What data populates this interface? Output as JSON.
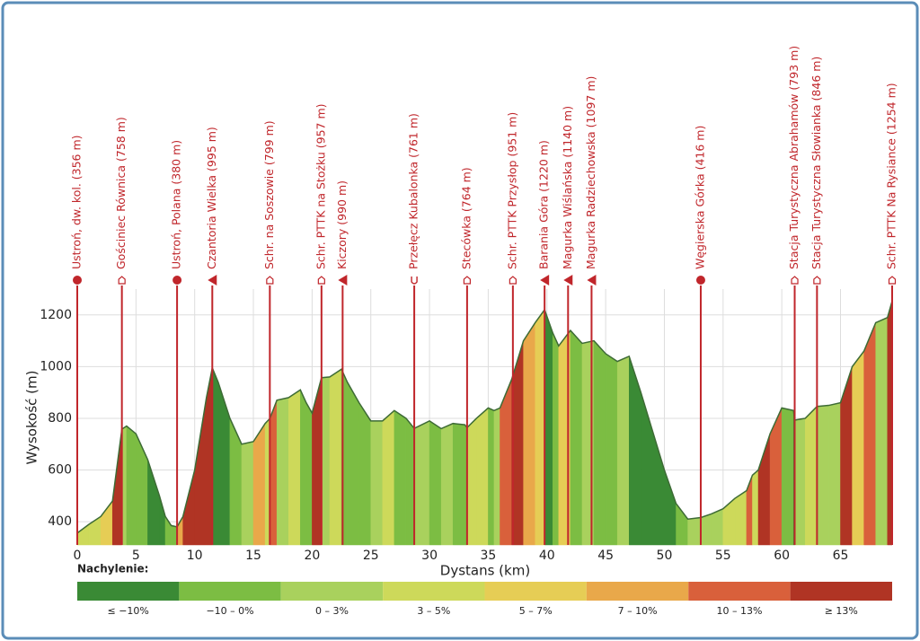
{
  "chart_data": {
    "type": "elevation-profile",
    "x_label": "Dystans (km)",
    "y_label": "Wysokość (m)",
    "xlim": [
      0,
      69.4
    ],
    "ylim": [
      310,
      1300
    ],
    "xticks": [
      0,
      5,
      10,
      15,
      20,
      25,
      30,
      35,
      40,
      45,
      50,
      55,
      60,
      65
    ],
    "yticks": [
      400,
      600,
      800,
      1000,
      1200
    ],
    "grid": true,
    "line_color": "#3d6b35",
    "x": [
      0,
      1,
      2,
      3,
      3.8,
      4.2,
      5,
      6,
      7,
      7.5,
      8,
      8.5,
      9,
      10,
      11,
      11.5,
      12,
      13,
      14,
      15,
      16,
      16.4,
      17,
      18,
      19,
      19.5,
      20,
      20.8,
      21.5,
      22.5,
      23,
      24,
      25,
      26,
      27,
      28,
      28.7,
      30,
      31,
      32,
      33,
      33.2,
      34,
      35,
      35.5,
      36,
      37,
      38,
      39,
      39.8,
      40.5,
      41,
      42,
      43,
      43.7,
      44,
      45,
      46,
      46.5,
      47,
      48,
      49,
      50,
      51,
      52,
      53.1,
      54,
      55,
      56,
      57,
      57.5,
      58,
      59,
      60,
      61,
      61.1,
      62,
      63,
      64,
      65,
      66,
      67,
      68,
      69,
      69.4
    ],
    "values": [
      356,
      390,
      420,
      480,
      758,
      770,
      740,
      640,
      500,
      420,
      385,
      380,
      420,
      600,
      880,
      995,
      940,
      800,
      700,
      710,
      780,
      799,
      870,
      880,
      910,
      860,
      820,
      957,
      960,
      990,
      940,
      860,
      790,
      790,
      830,
      800,
      761,
      790,
      760,
      780,
      775,
      764,
      800,
      840,
      830,
      840,
      951,
      1100,
      1170,
      1220,
      1130,
      1080,
      1140,
      1090,
      1097,
      1100,
      1050,
      1020,
      1030,
      1040,
      900,
      750,
      600,
      470,
      410,
      416,
      430,
      450,
      490,
      520,
      580,
      600,
      740,
      840,
      830,
      793,
      800,
      846,
      850,
      860,
      1000,
      1060,
      1170,
      1190,
      1254
    ],
    "waypoints": [
      {
        "label": "Ustroń, dw. kol. (356 m)",
        "x": 0,
        "marker": "circle"
      },
      {
        "label": "Gościniec Równica (758 m)",
        "x": 3.8,
        "marker": "shelter"
      },
      {
        "label": "Ustroń, Polana (380 m)",
        "x": 8.5,
        "marker": "circle"
      },
      {
        "label": "Czantoria Wielka (995 m)",
        "x": 11.5,
        "marker": "peak"
      },
      {
        "label": "Schr. na Soszowie (799 m)",
        "x": 16.4,
        "marker": "shelter"
      },
      {
        "label": "Schr. PTTK na Stożku (957 m)",
        "x": 20.8,
        "marker": "shelter"
      },
      {
        "label": "Kiczory (990 m)",
        "x": 22.6,
        "marker": "peak"
      },
      {
        "label": "Przełęcz Kubalonka (761 m)",
        "x": 28.7,
        "marker": "pass"
      },
      {
        "label": "Stecówka (764 m)",
        "x": 33.2,
        "marker": "shelter"
      },
      {
        "label": "Schr. PTTK Przysłop (951 m)",
        "x": 37.1,
        "marker": "shelter"
      },
      {
        "label": "Barania Góra (1220 m)",
        "x": 39.8,
        "marker": "peak"
      },
      {
        "label": "Magurka Wiślańska (1140 m)",
        "x": 41.8,
        "marker": "peak"
      },
      {
        "label": "Magurka Radziechowska (1097 m)",
        "x": 43.8,
        "marker": "peak"
      },
      {
        "label": "Węgierska Górka (416 m)",
        "x": 53.1,
        "marker": "circle"
      },
      {
        "label": "Stacja Turystyczna Abrahamów (793 m)",
        "x": 61.1,
        "marker": "shelter"
      },
      {
        "label": "Stacja Turystyczna Słowianka (846 m)",
        "x": 63.0,
        "marker": "shelter"
      },
      {
        "label": "Schr. PTTK Na Rysiance (1254 m)",
        "x": 69.4,
        "marker": "shelter"
      }
    ],
    "waypoint_color": "#c0262b",
    "legend": {
      "title": "Nachylenie:",
      "items": [
        {
          "label": "≤ −10%",
          "min": null,
          "max": -10,
          "color": "#3a8a35"
        },
        {
          "label": "−10 – 0%",
          "min": -10,
          "max": 0,
          "color": "#7cbd43"
        },
        {
          "label": "0 – 3%",
          "min": 0,
          "max": 3,
          "color": "#a9d15d"
        },
        {
          "label": "3 – 5%",
          "min": 3,
          "max": 5,
          "color": "#cdd95a"
        },
        {
          "label": "5 – 7%",
          "min": 5,
          "max": 7,
          "color": "#e6cd55"
        },
        {
          "label": "7 – 10%",
          "min": 7,
          "max": 10,
          "color": "#e9a84a"
        },
        {
          "label": "10 – 13%",
          "min": 10,
          "max": 13,
          "color": "#d9603b"
        },
        {
          "label": "≥ 13%",
          "min": 13,
          "max": null,
          "color": "#b03424"
        }
      ]
    }
  }
}
